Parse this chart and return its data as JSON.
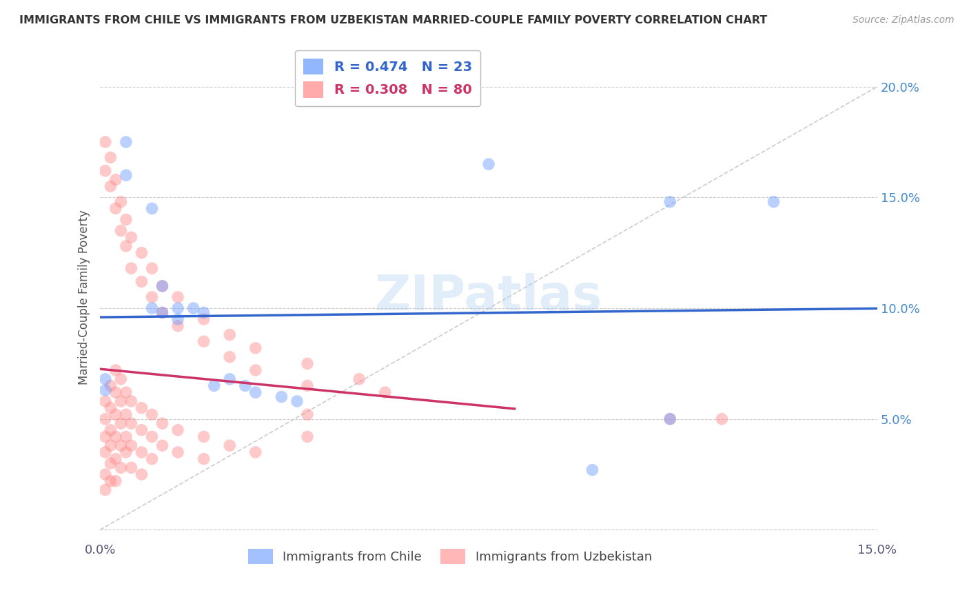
{
  "title": "IMMIGRANTS FROM CHILE VS IMMIGRANTS FROM UZBEKISTAN MARRIED-COUPLE FAMILY POVERTY CORRELATION CHART",
  "source": "Source: ZipAtlas.com",
  "ylabel": "Married-Couple Family Poverty",
  "xlim": [
    0.0,
    0.15
  ],
  "ylim": [
    -0.005,
    0.215
  ],
  "chile_color": "#6699ff",
  "uzbekistan_color": "#ff8888",
  "chile_line_color": "#3366cc",
  "uzbekistan_line_color": "#cc3366",
  "chile_R": 0.474,
  "chile_N": 23,
  "uzbekistan_R": 0.308,
  "uzbekistan_N": 80,
  "diagonal_color": "#cccccc",
  "watermark": "ZIPatlas",
  "chile_points": [
    [
      0.001,
      0.068
    ],
    [
      0.001,
      0.063
    ],
    [
      0.005,
      0.175
    ],
    [
      0.005,
      0.16
    ],
    [
      0.01,
      0.145
    ],
    [
      0.01,
      0.1
    ],
    [
      0.012,
      0.11
    ],
    [
      0.012,
      0.098
    ],
    [
      0.015,
      0.1
    ],
    [
      0.015,
      0.095
    ],
    [
      0.018,
      0.1
    ],
    [
      0.02,
      0.098
    ],
    [
      0.022,
      0.065
    ],
    [
      0.025,
      0.068
    ],
    [
      0.028,
      0.065
    ],
    [
      0.03,
      0.062
    ],
    [
      0.035,
      0.06
    ],
    [
      0.038,
      0.058
    ],
    [
      0.075,
      0.165
    ],
    [
      0.11,
      0.05
    ],
    [
      0.13,
      0.148
    ],
    [
      0.11,
      0.148
    ],
    [
      0.095,
      0.027
    ]
  ],
  "uzbekistan_points": [
    [
      0.001,
      0.175
    ],
    [
      0.001,
      0.162
    ],
    [
      0.001,
      0.058
    ],
    [
      0.001,
      0.05
    ],
    [
      0.001,
      0.042
    ],
    [
      0.001,
      0.035
    ],
    [
      0.001,
      0.025
    ],
    [
      0.001,
      0.018
    ],
    [
      0.002,
      0.168
    ],
    [
      0.002,
      0.155
    ],
    [
      0.002,
      0.065
    ],
    [
      0.002,
      0.055
    ],
    [
      0.002,
      0.045
    ],
    [
      0.002,
      0.038
    ],
    [
      0.002,
      0.03
    ],
    [
      0.002,
      0.022
    ],
    [
      0.003,
      0.158
    ],
    [
      0.003,
      0.145
    ],
    [
      0.003,
      0.072
    ],
    [
      0.003,
      0.062
    ],
    [
      0.003,
      0.052
    ],
    [
      0.003,
      0.042
    ],
    [
      0.003,
      0.032
    ],
    [
      0.003,
      0.022
    ],
    [
      0.004,
      0.148
    ],
    [
      0.004,
      0.135
    ],
    [
      0.004,
      0.068
    ],
    [
      0.004,
      0.058
    ],
    [
      0.004,
      0.048
    ],
    [
      0.004,
      0.038
    ],
    [
      0.004,
      0.028
    ],
    [
      0.005,
      0.14
    ],
    [
      0.005,
      0.128
    ],
    [
      0.005,
      0.062
    ],
    [
      0.005,
      0.052
    ],
    [
      0.005,
      0.042
    ],
    [
      0.005,
      0.035
    ],
    [
      0.006,
      0.132
    ],
    [
      0.006,
      0.118
    ],
    [
      0.006,
      0.058
    ],
    [
      0.006,
      0.048
    ],
    [
      0.006,
      0.038
    ],
    [
      0.006,
      0.028
    ],
    [
      0.008,
      0.125
    ],
    [
      0.008,
      0.112
    ],
    [
      0.008,
      0.055
    ],
    [
      0.008,
      0.045
    ],
    [
      0.008,
      0.035
    ],
    [
      0.008,
      0.025
    ],
    [
      0.01,
      0.118
    ],
    [
      0.01,
      0.105
    ],
    [
      0.01,
      0.052
    ],
    [
      0.01,
      0.042
    ],
    [
      0.01,
      0.032
    ],
    [
      0.012,
      0.11
    ],
    [
      0.012,
      0.098
    ],
    [
      0.012,
      0.048
    ],
    [
      0.012,
      0.038
    ],
    [
      0.015,
      0.105
    ],
    [
      0.015,
      0.092
    ],
    [
      0.015,
      0.045
    ],
    [
      0.015,
      0.035
    ],
    [
      0.02,
      0.095
    ],
    [
      0.02,
      0.085
    ],
    [
      0.02,
      0.042
    ],
    [
      0.02,
      0.032
    ],
    [
      0.025,
      0.088
    ],
    [
      0.025,
      0.078
    ],
    [
      0.025,
      0.038
    ],
    [
      0.03,
      0.082
    ],
    [
      0.03,
      0.072
    ],
    [
      0.03,
      0.035
    ],
    [
      0.04,
      0.075
    ],
    [
      0.04,
      0.065
    ],
    [
      0.04,
      0.052
    ],
    [
      0.04,
      0.042
    ],
    [
      0.05,
      0.068
    ],
    [
      0.055,
      0.062
    ],
    [
      0.11,
      0.05
    ],
    [
      0.12,
      0.05
    ]
  ]
}
